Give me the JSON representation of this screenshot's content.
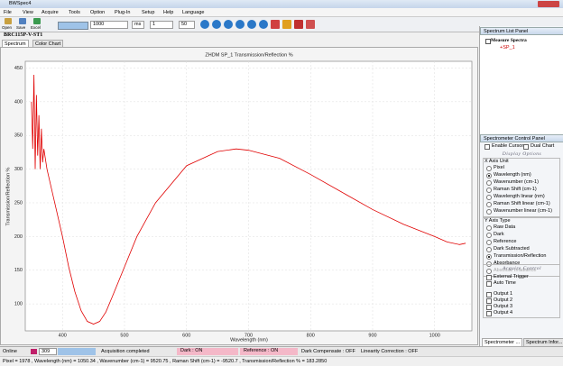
{
  "window": {
    "title": "BWSpec4"
  },
  "menu": [
    "File",
    "View",
    "Acquire",
    "Tools",
    "Option",
    "Plug-In",
    "Setup",
    "Help",
    "Language"
  ],
  "toolbar": {
    "buttons": [
      "Open",
      "Save",
      "Excel"
    ],
    "integration_time": "1000",
    "time_unit": "ms",
    "average": "1",
    "smoothing": "50"
  },
  "device": "BRC115P-V-ST1",
  "tabs": [
    "Spectrum",
    "Color Chart"
  ],
  "chart_data": {
    "type": "line",
    "title": "ZHDM SP_1 Transmission/Reflection %",
    "x_label": "Wavelength (nm)",
    "y_label": "Transmission/Reflection %",
    "x": [
      350,
      352,
      354,
      356,
      358,
      360,
      362,
      364,
      366,
      368,
      370,
      375,
      380,
      390,
      400,
      410,
      420,
      430,
      440,
      450,
      460,
      470,
      480,
      500,
      520,
      550,
      600,
      650,
      680,
      700,
      750,
      800,
      850,
      900,
      950,
      1000,
      1020,
      1040,
      1050
    ],
    "series": [
      {
        "name": "SP_1",
        "color": "#e00000",
        "values": [
          400,
          330,
          440,
          300,
          410,
          320,
          380,
          300,
          360,
          310,
          330,
          300,
          280,
          240,
          200,
          155,
          118,
          90,
          74,
          70,
          74,
          88,
          110,
          155,
          200,
          250,
          305,
          326,
          330,
          328,
          316,
          292,
          266,
          240,
          218,
          200,
          192,
          188,
          190
        ]
      }
    ],
    "xlim": [
      340,
      1060
    ],
    "xticks": [
      400,
      500,
      600,
      700,
      800,
      900,
      1000
    ],
    "ylim": [
      60,
      460
    ],
    "yticks": [
      100,
      150,
      200,
      250,
      300,
      350,
      400,
      450
    ],
    "grid": true
  },
  "spectrum_list": {
    "title": "Spectrum List Panel",
    "root": "Measure Spectra",
    "items": [
      "+SP_1"
    ]
  },
  "control_panel": {
    "title": "Spectrometer Control Panel",
    "enable_cursor": "Enable Cursor",
    "dual_chart": "Dual Chart",
    "display_options": "Display Options",
    "x_axis": {
      "title": "X Axis Unit",
      "selected": 1,
      "options": [
        "Pixel",
        "Wavelength (nm)",
        "Wavenumber (cm-1)",
        "Raman Shift (cm-1)",
        "Wavelength linear (nm)",
        "Raman Shift linear (cm-1)",
        "Wavenumber linear (cm-1)"
      ]
    },
    "y_axis": {
      "title": "Y Axis Type",
      "selected": 4,
      "disabled": 6,
      "options": [
        "Raw Data",
        "Dark",
        "Reference",
        "Dark Subtracted",
        "Transmission/Reflection",
        "Absorbance",
        "Absolute Irradiance"
      ]
    },
    "acquire_control": "Acquire Control",
    "acquire_options": [
      "External Trigger",
      "Auto Time",
      "Output 1",
      "Output 2",
      "Output 3",
      "Output 4"
    ]
  },
  "panel_tabs": [
    "Spectrometer ...",
    "Spectrum Infor..."
  ],
  "status": {
    "online": "Online",
    "count": "309",
    "message": "Acquisition completed",
    "dark": "Dark : ON",
    "reference": "Reference : ON",
    "dark_compensate": "Dark Compensate : OFF",
    "linearity": "Linearity Correction : OFF",
    "cursor": "Pixel = 1978 , Wavelength (nm) = 1050.34 , Wavenumber (cm-1) = 9520.75 , Raman Shift (cm-1) = -9520.7 , Transmission/Reflection % = 183.2850"
  }
}
